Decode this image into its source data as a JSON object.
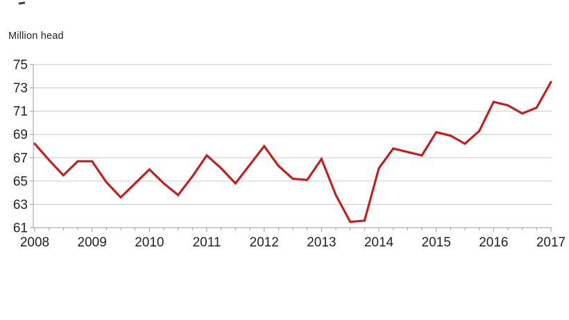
{
  "window": {
    "background": "#ffffff"
  },
  "chart": {
    "unit_label": "Million head",
    "colors": {
      "line": "#c41e20",
      "grid": "#cacaca",
      "axis": "#9a9a9a",
      "text": "#1f1f1f"
    }
  },
  "chart_data": {
    "type": "line",
    "title": "",
    "xlabel": "",
    "ylabel": "Million head",
    "legend": "none",
    "grid": "horizontal",
    "ylim": [
      61,
      75
    ],
    "y_ticks": [
      61,
      63,
      65,
      67,
      69,
      71,
      73,
      75
    ],
    "x_tick_labels": [
      "2008",
      "2009",
      "2010",
      "2011",
      "2012",
      "2013",
      "2014",
      "2015",
      "2016",
      "2017"
    ],
    "x_minor_ticks_per_year": 4,
    "x_quarters": [
      "2008 Q1",
      "2008 Q2",
      "2008 Q3",
      "2008 Q4",
      "2009 Q1",
      "2009 Q2",
      "2009 Q3",
      "2009 Q4",
      "2010 Q1",
      "2010 Q2",
      "2010 Q3",
      "2010 Q4",
      "2011 Q1",
      "2011 Q2",
      "2011 Q3",
      "2011 Q4",
      "2012 Q1",
      "2012 Q2",
      "2012 Q3",
      "2012 Q4",
      "2013 Q1",
      "2013 Q2",
      "2013 Q3",
      "2013 Q4",
      "2014 Q1",
      "2014 Q2",
      "2014 Q3",
      "2014 Q4",
      "2015 Q1",
      "2015 Q2",
      "2015 Q3",
      "2015 Q4",
      "2016 Q1",
      "2016 Q2",
      "2016 Q3",
      "2016 Q4",
      "2017 Q1"
    ],
    "series": [
      {
        "name": "Million head",
        "color": "#c41e20",
        "values": [
          68.2,
          66.8,
          65.5,
          66.7,
          66.7,
          64.9,
          63.6,
          64.8,
          66.0,
          64.8,
          63.8,
          65.4,
          67.2,
          66.1,
          64.8,
          66.4,
          68.0,
          66.3,
          65.2,
          65.1,
          66.9,
          63.8,
          61.5,
          61.6,
          66.1,
          67.8,
          67.5,
          67.2,
          69.2,
          68.9,
          68.2,
          69.3,
          71.8,
          71.5,
          70.8,
          71.3,
          73.5
        ]
      }
    ]
  }
}
